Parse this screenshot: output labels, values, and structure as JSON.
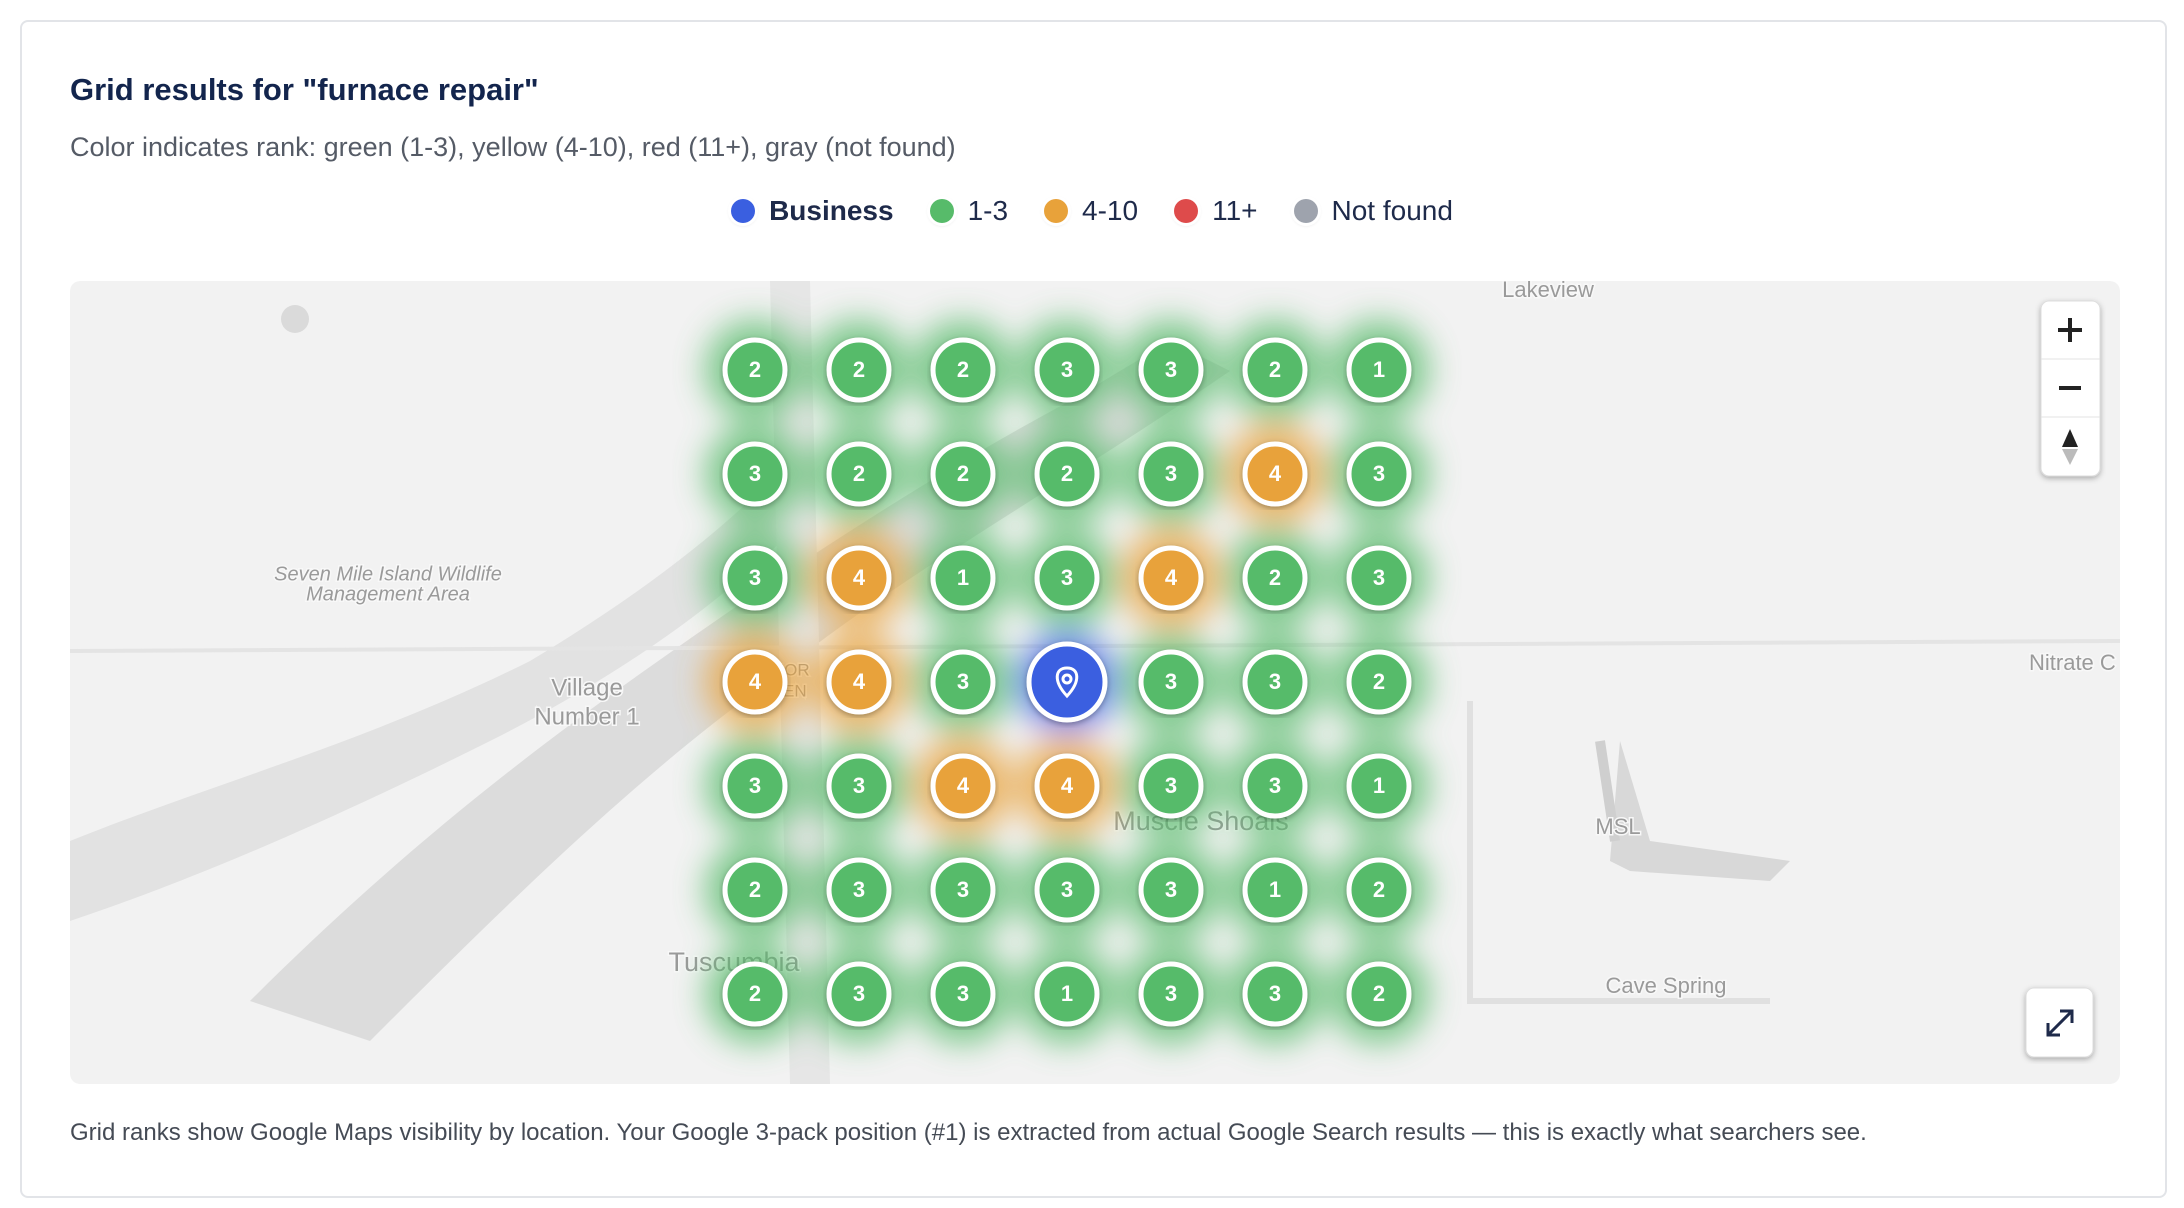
{
  "header": {
    "title": "Grid results for \"furnace repair\"",
    "subtitle": "Color indicates rank: green (1-3), yellow (4-10), red (11+), gray (not found)"
  },
  "legend": [
    {
      "label": "Business",
      "color": "#3a5fe0"
    },
    {
      "label": "1-3",
      "color": "#57bb6a"
    },
    {
      "label": "4-10",
      "color": "#e8a23a"
    },
    {
      "label": "11+",
      "color": "#de4b4b"
    },
    {
      "label": "Not found",
      "color": "#9ea3ad"
    }
  ],
  "grid": {
    "rows": [
      [
        2,
        2,
        2,
        3,
        3,
        2,
        1
      ],
      [
        3,
        2,
        2,
        2,
        3,
        4,
        3
      ],
      [
        3,
        4,
        1,
        3,
        4,
        2,
        3
      ],
      [
        4,
        4,
        3,
        null,
        3,
        3,
        2
      ],
      [
        3,
        3,
        4,
        4,
        3,
        3,
        1
      ],
      [
        2,
        3,
        3,
        3,
        3,
        1,
        2
      ],
      [
        2,
        3,
        3,
        1,
        3,
        3,
        2
      ]
    ]
  },
  "map": {
    "labels": [
      "Lakeview",
      "Seven Mile Island Wildlife",
      "Management Area",
      "Village",
      "Number 1",
      "MANOR",
      "HAVEN",
      "Muscle Shoals",
      "Tuscumbia",
      "Nitrate C",
      "MSL",
      "Cave Spring"
    ]
  },
  "footer": "Grid ranks show Google Maps visibility by location. Your Google 3-pack position (#1) is extracted from actual Google Search results — this is exactly what searchers see."
}
